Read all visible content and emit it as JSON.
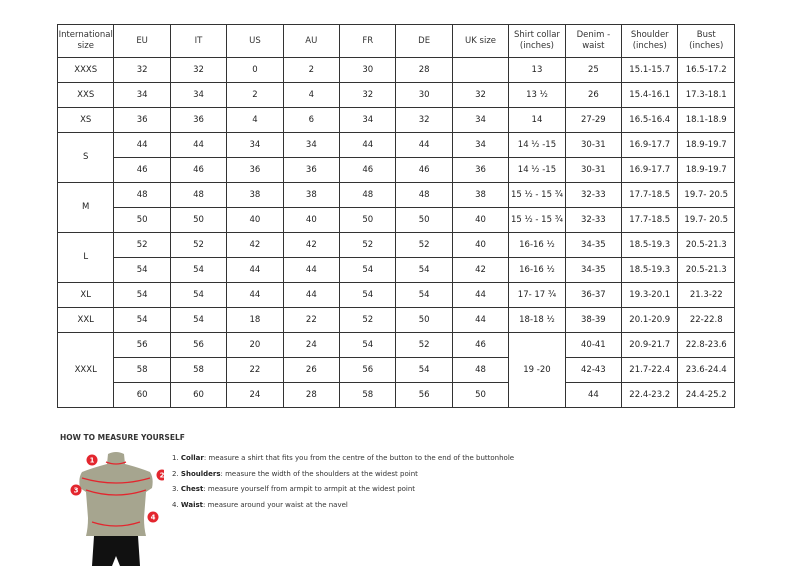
{
  "table": {
    "headers": [
      "International size",
      "EU",
      "IT",
      "US",
      "AU",
      "FR",
      "DE",
      "UK size",
      "Shirt collar (inches)",
      "Denim - waist",
      "Shoulder (inches)",
      "Bust (inches)"
    ],
    "groups": [
      {
        "size": "XXXS",
        "rows": [
          [
            "32",
            "32",
            "0",
            "2",
            "30",
            "28",
            "",
            "13",
            "25",
            "15.1-15.7",
            "16.5-17.2"
          ]
        ]
      },
      {
        "size": "XXS",
        "rows": [
          [
            "34",
            "34",
            "2",
            "4",
            "32",
            "30",
            "32",
            "13 ½",
            "26",
            "15.4-16.1",
            "17.3-18.1"
          ]
        ]
      },
      {
        "size": "XS",
        "rows": [
          [
            "36",
            "36",
            "4",
            "6",
            "34",
            "32",
            "34",
            "14",
            "27-29",
            "16.5-16.4",
            "18.1-18.9"
          ]
        ]
      },
      {
        "size": "S",
        "rows": [
          [
            "44",
            "44",
            "34",
            "34",
            "44",
            "44",
            "34",
            "14 ½ -15",
            "30-31",
            "16.9-17.7",
            "18.9-19.7"
          ],
          [
            "46",
            "46",
            "36",
            "36",
            "46",
            "46",
            "36",
            "14 ½ -15",
            "30-31",
            "16.9-17.7",
            "18.9-19.7"
          ]
        ]
      },
      {
        "size": "M",
        "rows": [
          [
            "48",
            "48",
            "38",
            "38",
            "48",
            "48",
            "38",
            "15 ½ - 15 ¾",
            "32-33",
            "17.7-18.5",
            "19.7- 20.5"
          ],
          [
            "50",
            "50",
            "40",
            "40",
            "50",
            "50",
            "40",
            "15 ½ - 15 ¾",
            "32-33",
            "17.7-18.5",
            "19.7- 20.5"
          ]
        ]
      },
      {
        "size": "L",
        "rows": [
          [
            "52",
            "52",
            "42",
            "42",
            "52",
            "52",
            "40",
            "16-16 ½",
            "34-35",
            "18.5-19.3",
            "20.5-21.3"
          ],
          [
            "54",
            "54",
            "44",
            "44",
            "54",
            "54",
            "42",
            "16-16 ½",
            "34-35",
            "18.5-19.3",
            "20.5-21.3"
          ]
        ]
      },
      {
        "size": "XL",
        "rows": [
          [
            "54",
            "54",
            "44",
            "44",
            "54",
            "54",
            "44",
            "17- 17 ¾",
            "36-37",
            "19.3-20.1",
            "21.3-22"
          ]
        ]
      },
      {
        "size": "XXL",
        "rows": [
          [
            "54",
            "54",
            "18",
            "22",
            "52",
            "50",
            "44",
            "18-18 ½",
            "38-39",
            "20.1-20.9",
            "22-22.8"
          ]
        ]
      },
      {
        "size": "XXXL",
        "collar": "19 -20",
        "rows": [
          [
            "56",
            "56",
            "20",
            "24",
            "54",
            "52",
            "46",
            null,
            "40-41",
            "20.9-21.7",
            "22.8-23.6"
          ],
          [
            "58",
            "58",
            "22",
            "26",
            "56",
            "54",
            "48",
            null,
            "42-43",
            "21.7-22.4",
            "23.6-24.4"
          ],
          [
            "60",
            "60",
            "24",
            "28",
            "58",
            "56",
            "50",
            null,
            "44",
            "22.4-23.2",
            "24.4-25.2"
          ]
        ]
      }
    ]
  },
  "howto": {
    "title": "HOW TO MEASURE YOURSELF",
    "steps": [
      {
        "num": "1.",
        "term": "Collar",
        "text": ": measure a shirt that fits you from the centre of the button to the end of the buttonhole"
      },
      {
        "num": "2.",
        "term": "Shoulders",
        "text": ": measure the width of the shoulders at the widest point"
      },
      {
        "num": "3.",
        "term": "Chest",
        "text": ": measure yourself from armpit to armpit at the widest point"
      },
      {
        "num": "4.",
        "term": "Waist",
        "text": ": measure around your waist at the navel"
      }
    ],
    "markers": [
      "1",
      "2",
      "3",
      "4"
    ],
    "accent": "#e3262e"
  }
}
